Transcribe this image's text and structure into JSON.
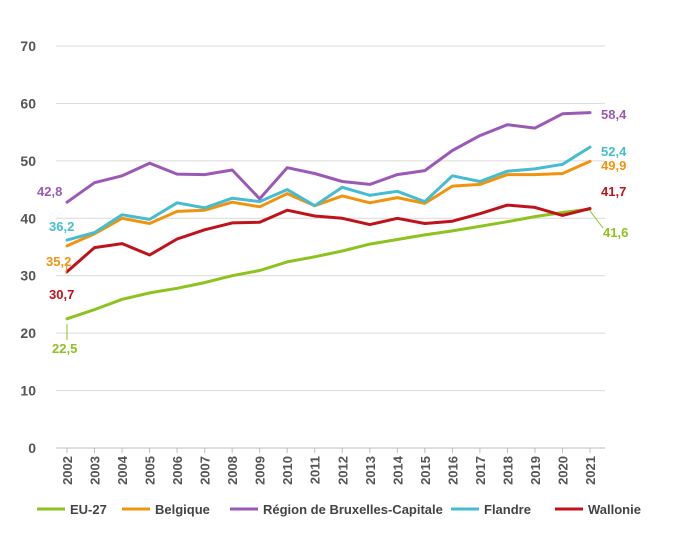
{
  "chart_data": {
    "type": "line",
    "x": [
      "2002",
      "2003",
      "2004",
      "2005",
      "2006",
      "2007",
      "2008",
      "2009",
      "2010",
      "2011",
      "2012",
      "2013",
      "2014",
      "2015",
      "2016",
      "2017",
      "2018",
      "2019",
      "2020",
      "2021"
    ],
    "ylim": [
      0,
      70
    ],
    "yticks": [
      0,
      10,
      20,
      30,
      40,
      50,
      60,
      70
    ],
    "grid": true,
    "legend_position": "bottom",
    "series": [
      {
        "name": "EU-27",
        "color": "#8dc21f",
        "values": [
          22.5,
          24.1,
          25.9,
          27.0,
          27.8,
          28.8,
          30.0,
          30.9,
          32.4,
          33.3,
          34.3,
          35.5,
          36.3,
          37.1,
          37.8,
          38.6,
          39.4,
          40.3,
          41.0,
          41.6
        ]
      },
      {
        "name": "Belgique",
        "color": "#f0940f",
        "values": [
          35.2,
          37.3,
          40.0,
          39.1,
          41.2,
          41.4,
          42.8,
          42.0,
          44.3,
          42.2,
          43.9,
          42.7,
          43.6,
          42.6,
          45.6,
          45.9,
          47.6,
          47.6,
          47.8,
          49.9
        ]
      },
      {
        "name": "Région de Bruxelles-Capitale",
        "color": "#9b59b6",
        "values": [
          42.8,
          46.2,
          47.4,
          49.6,
          47.7,
          47.6,
          48.4,
          43.4,
          48.8,
          47.8,
          46.4,
          45.9,
          47.6,
          48.3,
          51.8,
          54.4,
          56.3,
          55.7,
          58.2,
          58.4
        ]
      },
      {
        "name": "Flandre",
        "color": "#45bcd0",
        "values": [
          36.2,
          37.5,
          40.6,
          39.8,
          42.7,
          41.8,
          43.5,
          42.9,
          45.0,
          42.2,
          45.4,
          44.0,
          44.7,
          42.9,
          47.4,
          46.4,
          48.2,
          48.6,
          49.4,
          52.4
        ]
      },
      {
        "name": "Wallonie",
        "color": "#c0121b",
        "values": [
          30.7,
          34.9,
          35.6,
          33.6,
          36.4,
          38.0,
          39.2,
          39.3,
          41.4,
          40.4,
          40.0,
          38.9,
          40.0,
          39.1,
          39.5,
          40.8,
          42.3,
          41.9,
          40.5,
          41.7
        ]
      }
    ],
    "data_labels": [
      {
        "text": "42,8",
        "series": "Région de Bruxelles-Capitale",
        "color": "#9b59b6"
      },
      {
        "text": "36,2",
        "series": "Flandre",
        "color": "#45bcd0"
      },
      {
        "text": "35,2",
        "series": "Belgique",
        "color": "#f0940f"
      },
      {
        "text": "30,7",
        "series": "Wallonie",
        "color": "#c0121b"
      },
      {
        "text": "22,5",
        "series": "EU-27",
        "color": "#8dc21f"
      },
      {
        "text": "58,4",
        "series": "Région de Bruxelles-Capitale",
        "color": "#9b59b6"
      },
      {
        "text": "52,4",
        "series": "Flandre",
        "color": "#45bcd0"
      },
      {
        "text": "49,9",
        "series": "Belgique",
        "color": "#f0940f"
      },
      {
        "text": "41,7",
        "series": "Wallonie",
        "color": "#c0121b"
      },
      {
        "text": "41,6",
        "series": "EU-27",
        "color": "#8dc21f"
      }
    ]
  }
}
